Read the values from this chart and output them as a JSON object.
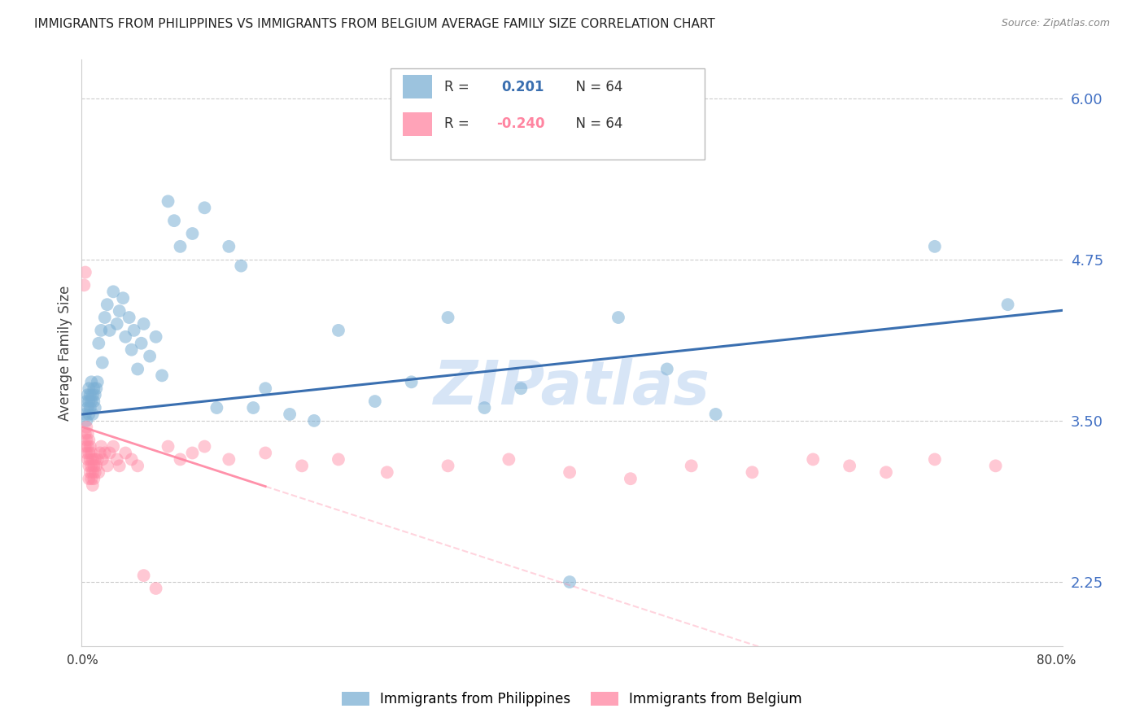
{
  "title": "IMMIGRANTS FROM PHILIPPINES VS IMMIGRANTS FROM BELGIUM AVERAGE FAMILY SIZE CORRELATION CHART",
  "source": "Source: ZipAtlas.com",
  "ylabel": "Average Family Size",
  "yticks": [
    2.25,
    3.5,
    4.75,
    6.0
  ],
  "ytick_color": "#4472C4",
  "ymin": 1.75,
  "ymax": 6.3,
  "xmin": -0.001,
  "xmax": 0.805,
  "R_philippines": 0.201,
  "N_philippines": 64,
  "R_belgium": -0.24,
  "N_belgium": 64,
  "blue_scatter_color": "#7BAFD4",
  "pink_scatter_color": "#FF85A1",
  "blue_line_color": "#3A6FB0",
  "pink_line_color": "#FF85A1",
  "watermark": "ZIPatlas",
  "watermark_color": "#B0CCEE",
  "background_color": "#FFFFFF",
  "grid_color": "#CCCCCC",
  "title_fontsize": 11,
  "legend_label_philippines": "Immigrants from Philippines",
  "legend_label_belgium": "Immigrants from Belgium",
  "philippines_x": [
    0.002,
    0.003,
    0.003,
    0.004,
    0.004,
    0.005,
    0.005,
    0.005,
    0.006,
    0.006,
    0.007,
    0.007,
    0.008,
    0.008,
    0.009,
    0.009,
    0.01,
    0.01,
    0.011,
    0.012,
    0.013,
    0.015,
    0.016,
    0.018,
    0.02,
    0.022,
    0.025,
    0.028,
    0.03,
    0.033,
    0.035,
    0.038,
    0.04,
    0.042,
    0.045,
    0.048,
    0.05,
    0.055,
    0.06,
    0.065,
    0.07,
    0.075,
    0.08,
    0.09,
    0.1,
    0.11,
    0.12,
    0.13,
    0.14,
    0.15,
    0.17,
    0.19,
    0.21,
    0.24,
    0.27,
    0.3,
    0.33,
    0.36,
    0.4,
    0.44,
    0.48,
    0.52,
    0.7,
    0.76
  ],
  "philippines_y": [
    3.55,
    3.65,
    3.5,
    3.7,
    3.6,
    3.75,
    3.55,
    3.65,
    3.7,
    3.6,
    3.65,
    3.8,
    3.55,
    3.7,
    3.65,
    3.75,
    3.6,
    3.7,
    3.75,
    3.8,
    4.1,
    4.2,
    3.95,
    4.3,
    4.4,
    4.2,
    4.5,
    4.25,
    4.35,
    4.45,
    4.15,
    4.3,
    4.05,
    4.2,
    3.9,
    4.1,
    4.25,
    4.0,
    4.15,
    3.85,
    5.2,
    5.05,
    4.85,
    4.95,
    5.15,
    3.6,
    4.85,
    4.7,
    3.6,
    3.75,
    3.55,
    3.5,
    4.2,
    3.65,
    3.8,
    4.3,
    3.6,
    3.75,
    2.25,
    4.3,
    3.9,
    3.55,
    4.85,
    4.4
  ],
  "belgium_x": [
    0.001,
    0.002,
    0.002,
    0.002,
    0.003,
    0.003,
    0.003,
    0.004,
    0.004,
    0.004,
    0.005,
    0.005,
    0.005,
    0.005,
    0.006,
    0.006,
    0.006,
    0.007,
    0.007,
    0.007,
    0.008,
    0.008,
    0.008,
    0.009,
    0.009,
    0.01,
    0.01,
    0.011,
    0.012,
    0.013,
    0.014,
    0.015,
    0.016,
    0.018,
    0.02,
    0.022,
    0.025,
    0.028,
    0.03,
    0.035,
    0.04,
    0.045,
    0.05,
    0.06,
    0.07,
    0.08,
    0.09,
    0.1,
    0.12,
    0.15,
    0.18,
    0.21,
    0.25,
    0.3,
    0.35,
    0.4,
    0.45,
    0.5,
    0.55,
    0.6,
    0.63,
    0.66,
    0.7,
    0.75
  ],
  "belgium_y": [
    4.55,
    4.65,
    3.4,
    3.3,
    3.45,
    3.35,
    3.25,
    3.4,
    3.3,
    3.2,
    3.35,
    3.25,
    3.15,
    3.05,
    3.3,
    3.2,
    3.1,
    3.25,
    3.15,
    3.05,
    3.2,
    3.1,
    3.0,
    3.15,
    3.05,
    3.2,
    3.1,
    3.15,
    3.2,
    3.1,
    3.25,
    3.3,
    3.2,
    3.25,
    3.15,
    3.25,
    3.3,
    3.2,
    3.15,
    3.25,
    3.2,
    3.15,
    2.3,
    2.2,
    3.3,
    3.2,
    3.25,
    3.3,
    3.2,
    3.25,
    3.15,
    3.2,
    3.1,
    3.15,
    3.2,
    3.1,
    3.05,
    3.15,
    3.1,
    3.2,
    3.15,
    3.1,
    3.2,
    3.15
  ]
}
